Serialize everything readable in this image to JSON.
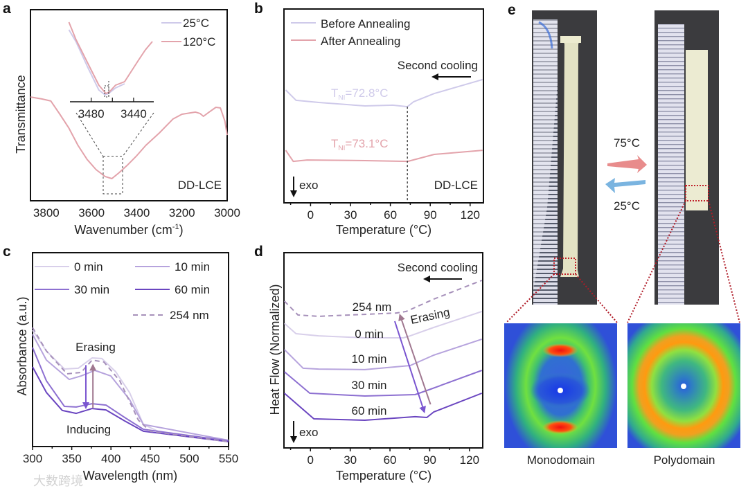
{
  "panel_labels": [
    "a",
    "b",
    "c",
    "d",
    "e"
  ],
  "watermark": "大数跨境",
  "chart_data": [
    {
      "id": "a",
      "type": "line",
      "xlabel": "Wavenumber (cm",
      "xlabel_sup": "-1",
      "xlabel_end": ")",
      "ylabel": "Transmittance",
      "xlim": [
        3870,
        3000
      ],
      "ylim": [
        0,
        100
      ],
      "xticks": [
        3800,
        3600,
        3400,
        3200,
        3000
      ],
      "annotation": "DD-LCE",
      "legend": [
        "25°C",
        "120°C"
      ],
      "series": [
        {
          "name": "120°C",
          "color": "#e3a3ab",
          "points": [
            [
              3870,
              54.3
            ],
            [
              3820,
              53.3
            ],
            [
              3780,
              52.2
            ],
            [
              3740,
              45.3
            ],
            [
              3700,
              38
            ],
            [
              3660,
              29
            ],
            [
              3620,
              21.7
            ],
            [
              3580,
              16.3
            ],
            [
              3540,
              12.7
            ],
            [
              3510,
              11.6
            ],
            [
              3480,
              14.5
            ],
            [
              3440,
              18.8
            ],
            [
              3400,
              23.6
            ],
            [
              3360,
              29
            ],
            [
              3300,
              35.5
            ],
            [
              3240,
              42.8
            ],
            [
              3200,
              45.3
            ],
            [
              3140,
              46.4
            ],
            [
              3120,
              45.7
            ],
            [
              3105,
              44.2
            ],
            [
              3080,
              46.4
            ],
            [
              3050,
              48.9
            ],
            [
              3030,
              48.6
            ],
            [
              3010,
              41.7
            ],
            [
              3000,
              34.4
            ]
          ]
        }
      ],
      "inset": {
        "xlim": [
          3500,
          3421
        ],
        "ylim": [
          0,
          114
        ],
        "xticks": [
          3480,
          3440
        ],
        "series": [
          {
            "name": "25°C",
            "color": "#cfcaea",
            "points": [
              [
                3501,
                104
              ],
              [
                3494.4,
                87
              ],
              [
                3483.3,
                50
              ],
              [
                3472.8,
                17
              ],
              [
                3466.9,
                10
              ],
              [
                3463.6,
                12
              ],
              [
                3457,
                20
              ],
              [
                3448.5,
                26
              ]
            ]
          },
          {
            "name": "120°C",
            "color": "#e3a3ab",
            "points": [
              [
                3501,
                115
              ],
              [
                3494.4,
                90
              ],
              [
                3481.3,
                50
              ],
              [
                3472.8,
                24
              ],
              [
                3466.2,
                12
              ],
              [
                3463,
                14
              ],
              [
                3457,
                24
              ],
              [
                3448.5,
                29
              ],
              [
                3435.4,
                60
              ],
              [
                3428.9,
                75
              ],
              [
                3422.3,
                87
              ]
            ]
          }
        ]
      }
    },
    {
      "id": "b",
      "type": "line",
      "xlabel": "Temperature (°C)",
      "xlim": [
        -20,
        130
      ],
      "ylim": [
        0,
        100
      ],
      "xticks": [
        0,
        30,
        60,
        90,
        120
      ],
      "legend": [
        "Before Annealing",
        "After Annealing"
      ],
      "direction_label": "Second cooling",
      "exo_label": "exo",
      "annotation": "DD-LCE",
      "transition_temp": 72.8,
      "series": [
        {
          "name": "Before Annealing",
          "color": "#cfcaea",
          "tni_prefix": "T",
          "tni_sub": "NI",
          "tni_value": "=72.8°C",
          "points": [
            [
              -18.7,
              58.2
            ],
            [
              -10.9,
              52.9
            ],
            [
              6.2,
              51.8
            ],
            [
              41,
              50
            ],
            [
              61.8,
              50.4
            ],
            [
              72.8,
              49.6
            ],
            [
              77.4,
              52.1
            ],
            [
              93,
              56.4
            ],
            [
              129.3,
              63.6
            ]
          ]
        },
        {
          "name": "After Annealing",
          "color": "#e3a3ab",
          "tni_prefix": "T",
          "tni_sub": "NI",
          "tni_value": "=73.1°C",
          "points": [
            [
              -18.7,
              27.1
            ],
            [
              -13,
              21.4
            ],
            [
              -2.6,
              22.1
            ],
            [
              41,
              21.8
            ],
            [
              73.1,
              21.4
            ],
            [
              93,
              25
            ],
            [
              129.3,
              27.1
            ]
          ]
        }
      ]
    },
    {
      "id": "c",
      "type": "line",
      "xlabel": "Wavelength (nm)",
      "ylabel": "Absorbance (a.u.)",
      "xlim": [
        300,
        550
      ],
      "ylim": [
        0,
        100
      ],
      "xticks": [
        300,
        350,
        400,
        450,
        500,
        550
      ],
      "annotations": {
        "erasing": "Erasing",
        "inducing": "Inducing"
      },
      "series": [
        {
          "name": "0 min",
          "color": "#d8cfea",
          "dashed": false,
          "points": [
            [
              300,
              60
            ],
            [
              317.7,
              49.3
            ],
            [
              340.6,
              40
            ],
            [
              358.3,
              40.4
            ],
            [
              376,
              45.7
            ],
            [
              388.3,
              45.4
            ],
            [
              406,
              38.6
            ],
            [
              423.7,
              27.9
            ],
            [
              441.3,
              11.4
            ],
            [
              464.3,
              7.1
            ],
            [
              550,
              3.2
            ]
          ]
        },
        {
          "name": "10 min",
          "color": "#b6a3dd",
          "dashed": false,
          "points": [
            [
              300,
              57.9
            ],
            [
              317.7,
              44.6
            ],
            [
              346.8,
              34.6
            ],
            [
              361.8,
              36.4
            ],
            [
              379.5,
              39.3
            ],
            [
              399.8,
              36.4
            ],
            [
              423.7,
              24.3
            ],
            [
              441.3,
              11.4
            ],
            [
              550,
              3.2
            ]
          ]
        },
        {
          "name": "30 min",
          "color": "#8d70d1",
          "dashed": false,
          "points": [
            [
              300,
              51.1
            ],
            [
              317.7,
              33.9
            ],
            [
              340.6,
              20.7
            ],
            [
              355.7,
              20.4
            ],
            [
              376,
              22.1
            ],
            [
              393.6,
              21.4
            ],
            [
              417.5,
              15
            ],
            [
              441.3,
              8.9
            ],
            [
              550,
              2.9
            ]
          ]
        },
        {
          "name": "60 min",
          "color": "#6a45c0",
          "dashed": false,
          "points": [
            [
              300,
              41.1
            ],
            [
              317.7,
              27.9
            ],
            [
              338,
              18.6
            ],
            [
              355.7,
              17.1
            ],
            [
              376,
              19.6
            ],
            [
              393.6,
              18.9
            ],
            [
              417.5,
              13.2
            ],
            [
              441.3,
              7.9
            ],
            [
              550,
              2.5
            ]
          ]
        },
        {
          "name": "254 nm",
          "color": "#a690ba",
          "dashed": true,
          "points": [
            [
              300,
              61.4
            ],
            [
              317.7,
              49.3
            ],
            [
              344,
              37.5
            ],
            [
              361.8,
              38.2
            ],
            [
              376,
              44.6
            ],
            [
              391,
              43.6
            ],
            [
              411.3,
              33.9
            ],
            [
              435,
              13.6
            ],
            [
              450,
              7.9
            ],
            [
              550,
              2.5
            ]
          ]
        }
      ]
    },
    {
      "id": "d",
      "type": "line",
      "xlabel": "Temperature (°C)",
      "ylabel": "Heat Flow (Normalized)",
      "xlim": [
        -20,
        130
      ],
      "ylim": [
        0,
        100
      ],
      "xticks": [
        0,
        30,
        60,
        90,
        120
      ],
      "direction_label": "Second cooling",
      "exo_label": "exo",
      "annotation": "Erasing",
      "series": [
        {
          "name": "254 nm",
          "color": "#a690ba",
          "dashed": true,
          "points": [
            [
              -19.7,
              75.2
            ],
            [
              -9.4,
              68.1
            ],
            [
              6.2,
              67.4
            ],
            [
              64.8,
              69.1
            ],
            [
              72.2,
              69.9
            ],
            [
              93,
              76.2
            ],
            [
              129.3,
              85.8
            ]
          ]
        },
        {
          "name": "0 min",
          "color": "#d8cfea",
          "dashed": false,
          "points": [
            [
              -19.7,
              63.8
            ],
            [
              -10.9,
              58.5
            ],
            [
              6.2,
              57.4
            ],
            [
              41,
              56.4
            ],
            [
              70.1,
              56.4
            ],
            [
              75.3,
              57.4
            ],
            [
              93,
              61.7
            ],
            [
              129.3,
              69.9
            ]
          ]
        },
        {
          "name": "10 min",
          "color": "#b6a3dd",
          "dashed": false,
          "points": [
            [
              -19.7,
              50.4
            ],
            [
              -5.5,
              40.8
            ],
            [
              6.2,
              40.4
            ],
            [
              41,
              40.1
            ],
            [
              75.3,
              42.2
            ],
            [
              93,
              47.5
            ],
            [
              129.3,
              55.7
            ]
          ]
        },
        {
          "name": "30 min",
          "color": "#8d70d1",
          "dashed": false,
          "points": [
            [
              -19.7,
              39
            ],
            [
              -0.5,
              28
            ],
            [
              41,
              26.6
            ],
            [
              79,
              27.3
            ],
            [
              89.4,
              29.8
            ],
            [
              129.3,
              39.7
            ]
          ]
        },
        {
          "name": "60 min",
          "color": "#6a45c0",
          "dashed": false,
          "points": [
            [
              -19.7,
              28
            ],
            [
              2.6,
              14.9
            ],
            [
              41,
              14.2
            ],
            [
              79,
              16
            ],
            [
              87.8,
              15.6
            ],
            [
              93,
              18.4
            ],
            [
              129.3,
              28
            ]
          ]
        }
      ]
    }
  ],
  "panel_e": {
    "heating_label": "75°C",
    "cooling_label": "25°C",
    "heating_arrow_color": "#e88c8c",
    "cooling_arrow_color": "#7ab4e0",
    "xrd_labels": [
      "Monodomain",
      "Polydomain"
    ]
  }
}
